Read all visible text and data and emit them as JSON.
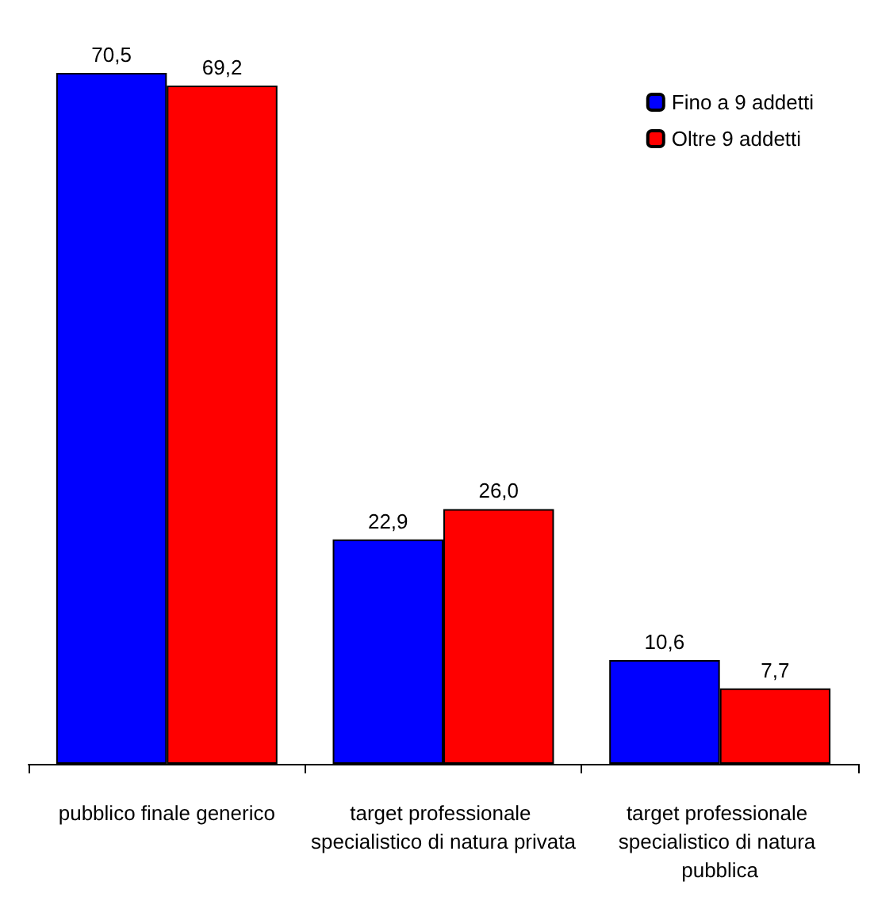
{
  "chart_data": {
    "type": "bar",
    "categories": [
      "pubblico finale generico",
      "target professionale specialistico di natura privata",
      "target professionale specialistico di natura pubblica"
    ],
    "series": [
      {
        "name": "Fino a 9 addetti",
        "color": "#0000ff",
        "values": [
          70.5,
          22.9,
          10.6
        ],
        "value_labels": [
          "70,5",
          "22,9",
          "10,6"
        ]
      },
      {
        "name": "Oltre 9 addetti",
        "color": "#ff0000",
        "values": [
          69.2,
          26.0,
          7.7
        ],
        "value_labels": [
          "69,2",
          "26,0",
          "7,7"
        ]
      }
    ],
    "legend": "top right",
    "grid": false
  }
}
